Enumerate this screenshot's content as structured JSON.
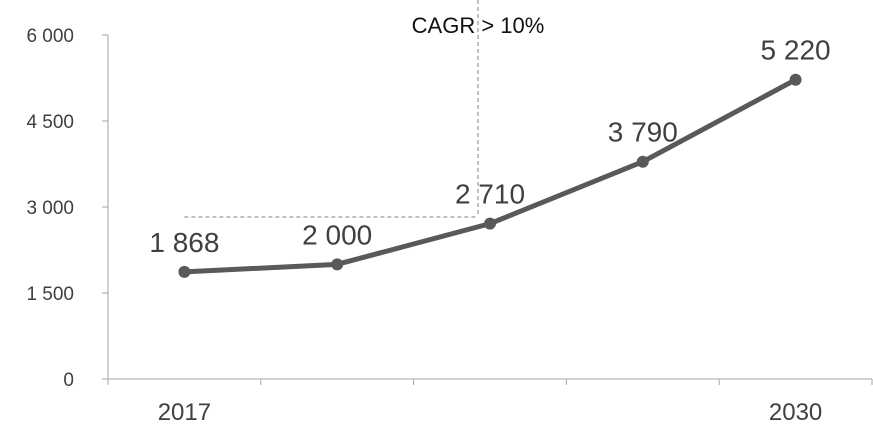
{
  "chart_data": {
    "type": "line",
    "title": "",
    "xlabel": "",
    "ylabel": "",
    "x": [
      "2017",
      "",
      "",
      "",
      "2030"
    ],
    "series": [
      {
        "values": [
          1868,
          2000,
          2710,
          3790,
          5220
        ],
        "labels": [
          "1 868",
          "2 000",
          "2 710",
          "3 790",
          "5 220"
        ],
        "color": "#595959"
      }
    ],
    "ylim": [
      0,
      6000
    ],
    "yticks": [
      0,
      1500,
      3000,
      4500,
      6000
    ],
    "ytick_labels": [
      "0",
      "1 500",
      "3 000",
      "4 500",
      "6 000"
    ],
    "xtick_labels": [
      "2017",
      "2030"
    ],
    "grid": false,
    "legend": "none",
    "annotation": {
      "text": "CAGR > 10%"
    }
  }
}
